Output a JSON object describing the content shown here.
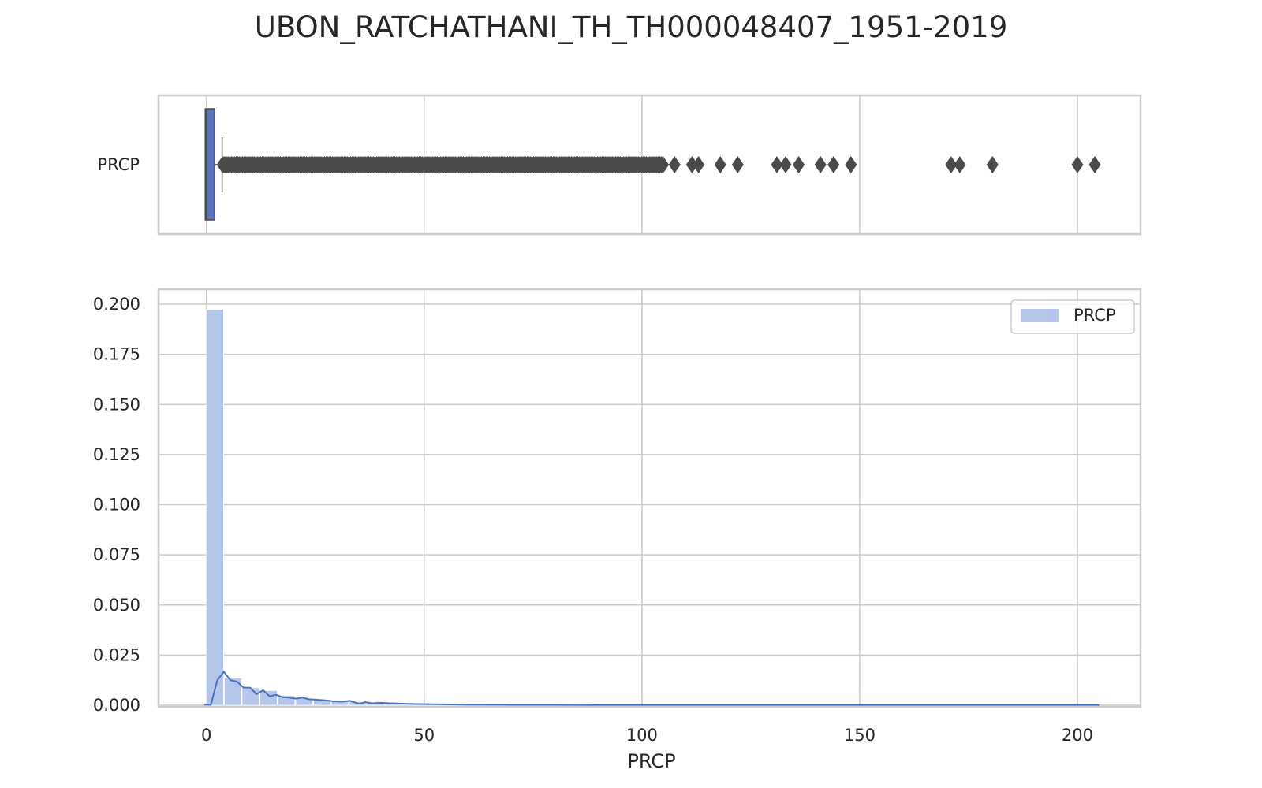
{
  "title": "UBON_RATCHATHANI_TH_TH000048407_1951-2019",
  "colors": {
    "box_fill": "#5874b8",
    "box_edge": "#4a4a4a",
    "outlier": "#4a4a4a",
    "hist_fill": "#b4c6ea",
    "kde_line": "#4a72c4",
    "grid": "#cccccc",
    "frame": "#cccccc"
  },
  "chart_data": [
    {
      "type": "box",
      "category_label": "PRCP",
      "x_range": [
        -11,
        214.5
      ],
      "x_ticks": [
        0,
        50,
        100,
        150,
        200
      ],
      "box": {
        "q1": 0,
        "median": 0,
        "q3": 1.8,
        "whisker_low": 0,
        "whisker_high": 3.6
      },
      "outliers_dense_range": [
        3.7,
        105
      ],
      "outliers_sparse": [
        107.5,
        111.5,
        113,
        118,
        122,
        131,
        133,
        136,
        141,
        144,
        148,
        171,
        173,
        180.5,
        200,
        204
      ],
      "grid": true
    },
    {
      "type": "bar",
      "subtype": "histogram + kde",
      "xlabel": "PRCP",
      "ylabel": "",
      "x_range": [
        -11,
        214.5
      ],
      "ylim": [
        0,
        0.2
      ],
      "x_ticks": [
        0,
        50,
        100,
        150,
        200
      ],
      "y_ticks": [
        "0.000",
        "0.025",
        "0.050",
        "0.075",
        "0.100",
        "0.125",
        "0.150",
        "0.175",
        "0.200"
      ],
      "legend": {
        "position": "top-right",
        "entries": [
          "PRCP"
        ]
      },
      "grid": true,
      "bin_width": 4.1,
      "hist_values": [
        0.1973,
        0.0136,
        0.0087,
        0.0073,
        0.0048,
        0.0035,
        0.0028,
        0.0022,
        0.0017,
        0.0014,
        0.0012,
        0.001,
        0.0008,
        0.0007,
        0.0006,
        0.0005,
        0.0004,
        0.0004,
        0.0003,
        0.0003,
        0.0002,
        0.0002,
        0.0002,
        0.0002,
        0.0001,
        0.0001,
        0.0001,
        0.0001,
        0.0001,
        0.0001,
        0.0001,
        0.0001,
        0.0001,
        0.0001,
        0.0001,
        0.0001,
        0.0001,
        0.0001,
        0.0001,
        0.0001,
        0.0001,
        0.0001,
        0.0001,
        0.0001,
        0.0001,
        0.0001,
        0.0001,
        0.0001,
        0.0001,
        0.0001
      ],
      "kde": {
        "x": [
          -0.5,
          1,
          2.5,
          4,
          5.5,
          7,
          8.5,
          10,
          11.5,
          13,
          14.5,
          16,
          17.5,
          19,
          20.5,
          22,
          23.5,
          25,
          27,
          29,
          31,
          33,
          35,
          36.5,
          38,
          40,
          42,
          45,
          48,
          52,
          56,
          60,
          70,
          80,
          90,
          100,
          110,
          130,
          150,
          170,
          200,
          205
        ],
        "y": [
          0.0003,
          0.0002,
          0.0125,
          0.0167,
          0.0125,
          0.0118,
          0.0088,
          0.0088,
          0.0055,
          0.0075,
          0.0045,
          0.0052,
          0.004,
          0.0038,
          0.0033,
          0.0038,
          0.003,
          0.0028,
          0.0025,
          0.002,
          0.0018,
          0.0022,
          0.0008,
          0.0015,
          0.001,
          0.0012,
          0.001,
          0.0008,
          0.0006,
          0.0005,
          0.0004,
          0.0003,
          0.0002,
          0.0002,
          0.0001,
          0.0001,
          0.0001,
          0.0001,
          0.0001,
          0.0001,
          0.0001,
          0.0001
        ]
      }
    }
  ]
}
